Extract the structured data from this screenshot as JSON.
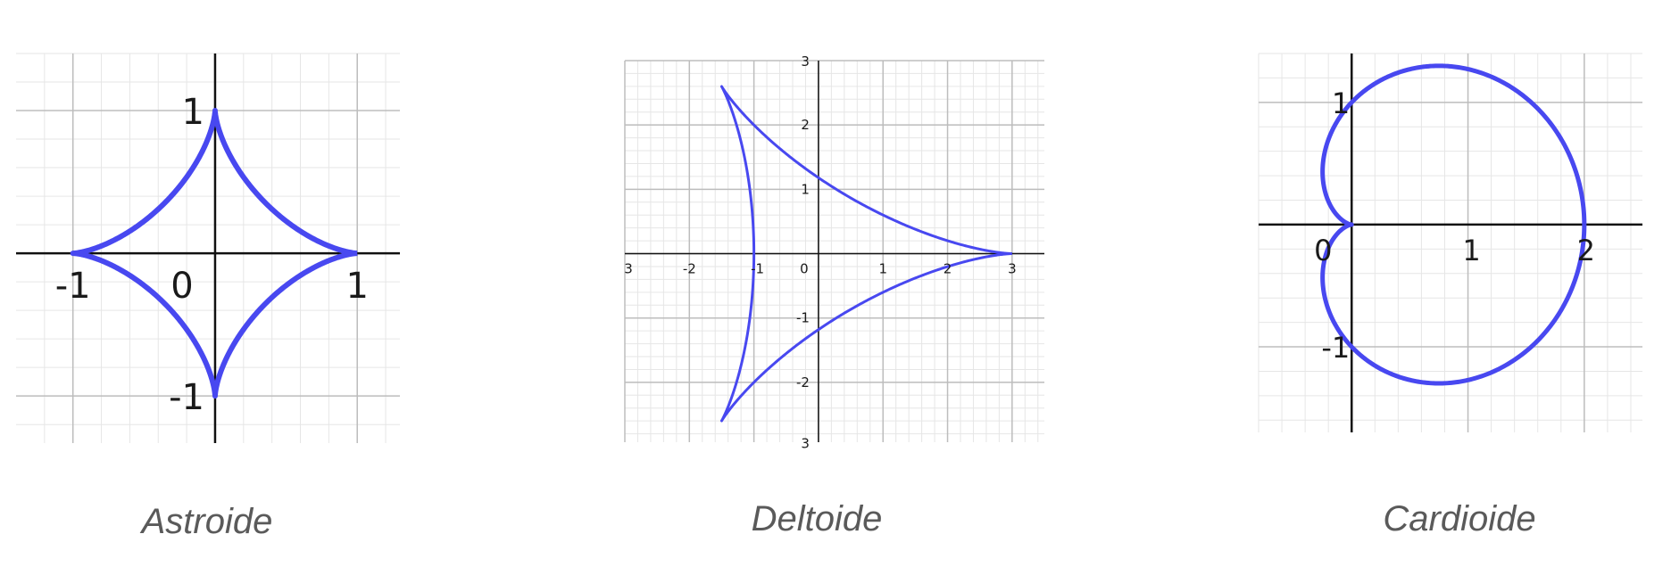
{
  "chart_data": [
    {
      "type": "line",
      "title": "Astroide",
      "equation_points": "x = cos^3 t, y = sin^3 t",
      "xlim": [
        -1.4,
        1.3
      ],
      "ylim": [
        -1.33,
        1.4
      ],
      "x_ticks": [
        "-1",
        "1"
      ],
      "y_ticks": [
        "1",
        "-1"
      ],
      "origin_label": "0",
      "grid": true,
      "color": "#4848f0"
    },
    {
      "type": "line",
      "title": "Deltoide",
      "equation_points": "x = 2cos t + cos 2t, y = 2sin t - sin 2t",
      "xlim": [
        -3,
        3.5
      ],
      "ylim": [
        -2.93,
        3
      ],
      "x_ticks": [
        "3",
        "-2",
        "-1",
        "1",
        "2",
        "3"
      ],
      "y_ticks": [
        "3",
        "2",
        "1",
        "-1",
        "-2",
        "3"
      ],
      "origin_label": "0",
      "grid": true,
      "color": "#4848f0"
    },
    {
      "type": "line",
      "title": "Cardioide",
      "equation_points": "r = 1 + cos t",
      "xlim": [
        -0.8,
        2.5
      ],
      "ylim": [
        -1.7,
        1.4
      ],
      "x_ticks": [
        "0",
        "1",
        "2"
      ],
      "y_ticks": [
        "1",
        "-1"
      ],
      "grid": true,
      "color": "#4848f0"
    }
  ],
  "captions": {
    "astroide": "Astroide",
    "deltoide": "Deltoide",
    "cardioide": "Cardioide"
  }
}
